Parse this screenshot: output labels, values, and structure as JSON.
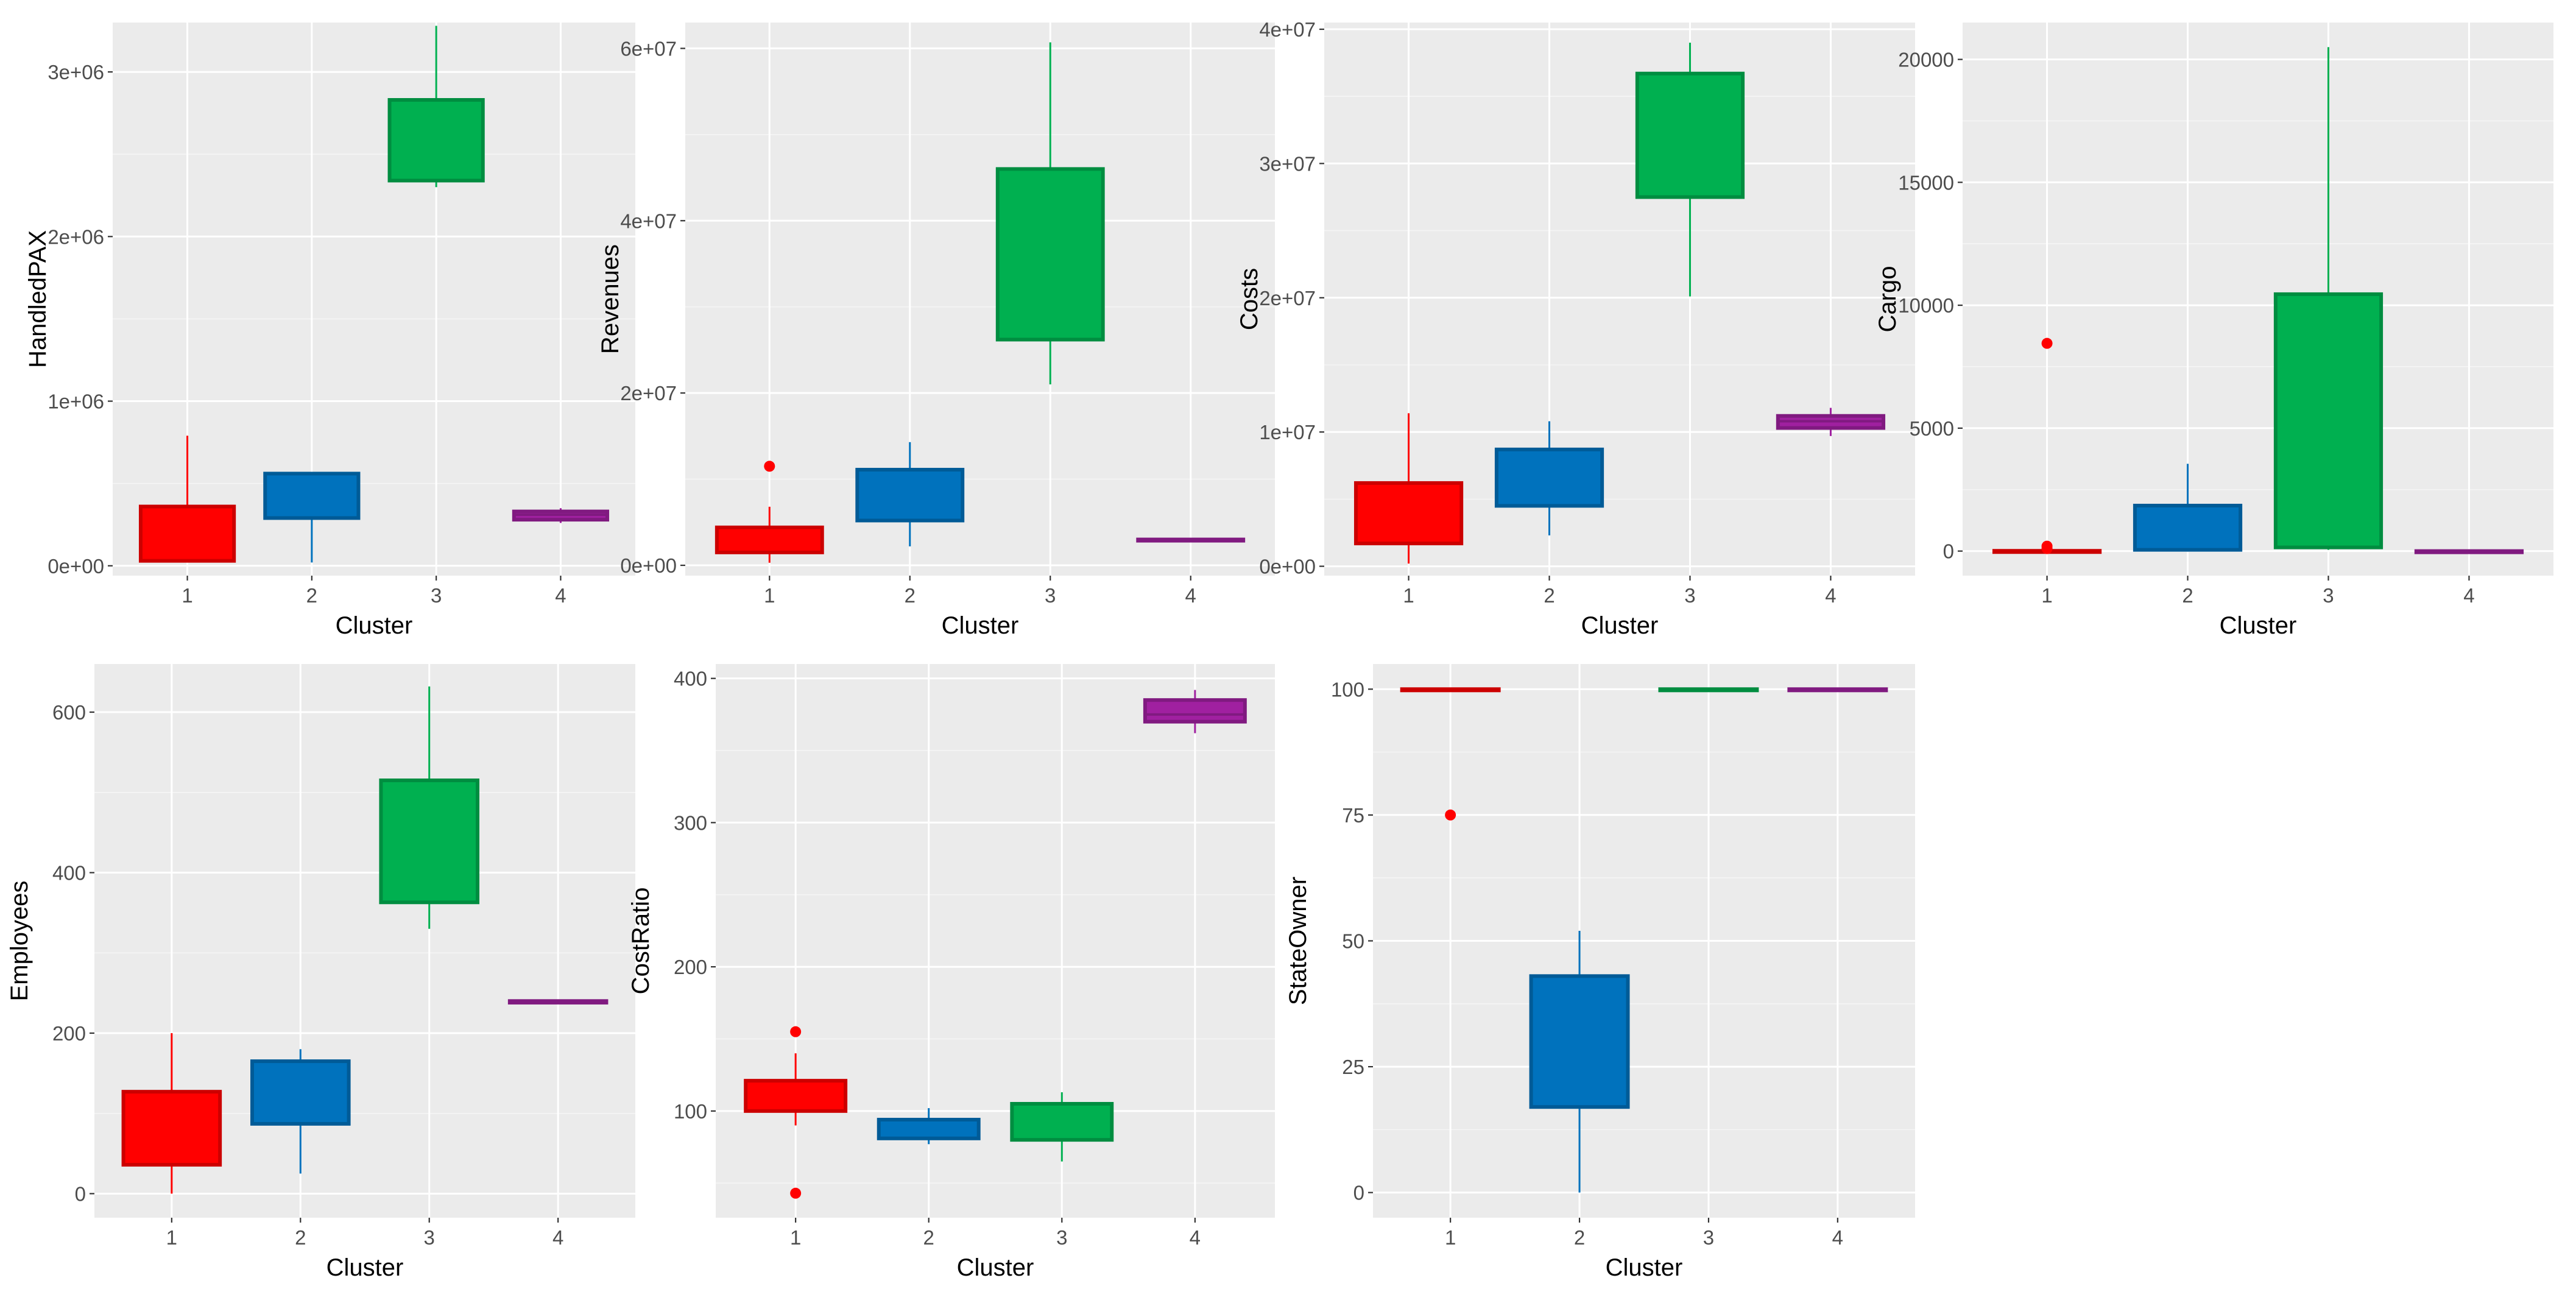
{
  "palette": {
    "1": "#ff0000",
    "2": "#0072bd",
    "3": "#00b050",
    "4": "#a020a0"
  },
  "chart_data": [
    {
      "type": "boxplot",
      "xlabel": "Cluster",
      "ylabel": "HandledPAX",
      "categories": [
        "1",
        "2",
        "3",
        "4"
      ],
      "ylim": [
        -60000,
        3300000
      ],
      "yticks": [
        0,
        1000000,
        2000000,
        3000000
      ],
      "ytick_labels": [
        "0e+00",
        "1e+06",
        "2e+06",
        "3e+06"
      ],
      "boxes": [
        {
          "cluster": "1",
          "min": 30000,
          "q1": 30000,
          "median": 30000,
          "q3": 360000,
          "max": 790000,
          "outliers": []
        },
        {
          "cluster": "2",
          "min": 20000,
          "q1": 290000,
          "median": 290000,
          "q3": 560000,
          "max": 560000,
          "outliers": []
        },
        {
          "cluster": "3",
          "min": 2300000,
          "q1": 2340000,
          "median": 2340000,
          "q3": 2830000,
          "max": 3280000,
          "outliers": []
        },
        {
          "cluster": "4",
          "min": 260000,
          "q1": 280000,
          "median": 310000,
          "q3": 330000,
          "max": 350000,
          "outliers": []
        }
      ]
    },
    {
      "type": "boxplot",
      "xlabel": "Cluster",
      "ylabel": "Revenues",
      "categories": [
        "1",
        "2",
        "3",
        "4"
      ],
      "ylim": [
        -1200000,
        63000000
      ],
      "yticks": [
        0,
        20000000,
        40000000,
        60000000
      ],
      "ytick_labels": [
        "0e+00",
        "2e+07",
        "4e+07",
        "6e+07"
      ],
      "boxes": [
        {
          "cluster": "1",
          "min": 300000,
          "q1": 1500000,
          "median": 1500000,
          "q3": 4400000,
          "max": 6800000,
          "outliers": [
            11500000
          ]
        },
        {
          "cluster": "2",
          "min": 2200000,
          "q1": 5200000,
          "median": 5200000,
          "q3": 11100000,
          "max": 14300000,
          "outliers": []
        },
        {
          "cluster": "3",
          "min": 21000000,
          "q1": 26200000,
          "median": 26200000,
          "q3": 46000000,
          "max": 60700000,
          "outliers": []
        },
        {
          "cluster": "4",
          "min": 2900000,
          "q1": 2900000,
          "median": 2900000,
          "q3": 3000000,
          "max": 3000000,
          "outliers": []
        }
      ]
    },
    {
      "type": "boxplot",
      "xlabel": "Cluster",
      "ylabel": "Costs",
      "categories": [
        "1",
        "2",
        "3",
        "4"
      ],
      "ylim": [
        -700000,
        40500000
      ],
      "yticks": [
        0,
        10000000,
        20000000,
        30000000,
        40000000
      ],
      "ytick_labels": [
        "0e+00",
        "1e+07",
        "2e+07",
        "3e+07",
        "4e+07"
      ],
      "boxes": [
        {
          "cluster": "1",
          "min": 200000,
          "q1": 1700000,
          "median": 1700000,
          "q3": 6200000,
          "max": 11400000,
          "outliers": []
        },
        {
          "cluster": "2",
          "min": 2300000,
          "q1": 4500000,
          "median": 4500000,
          "q3": 8700000,
          "max": 10800000,
          "outliers": []
        },
        {
          "cluster": "3",
          "min": 20100000,
          "q1": 27500000,
          "median": 27500000,
          "q3": 36700000,
          "max": 39000000,
          "outliers": []
        },
        {
          "cluster": "4",
          "min": 9700000,
          "q1": 10300000,
          "median": 10800000,
          "q3": 11200000,
          "max": 11800000,
          "outliers": []
        }
      ]
    },
    {
      "type": "boxplot",
      "xlabel": "Cluster",
      "ylabel": "Cargo",
      "categories": [
        "1",
        "2",
        "3",
        "4"
      ],
      "ylim": [
        -1000,
        21500
      ],
      "yticks": [
        0,
        5000,
        10000,
        15000,
        20000
      ],
      "ytick_labels": [
        "0",
        "5000",
        "10000",
        "15000",
        "20000"
      ],
      "boxes": [
        {
          "cluster": "1",
          "min": 0,
          "q1": 0,
          "median": 0,
          "q3": 10,
          "max": 20,
          "outliers": [
            8450,
            200,
            100
          ]
        },
        {
          "cluster": "2",
          "min": 0,
          "q1": 50,
          "median": 50,
          "q3": 1850,
          "max": 3550,
          "outliers": []
        },
        {
          "cluster": "3",
          "min": 50,
          "q1": 150,
          "median": 150,
          "q3": 10450,
          "max": 20500,
          "outliers": []
        },
        {
          "cluster": "4",
          "min": 0,
          "q1": 0,
          "median": 0,
          "q3": 0,
          "max": 0,
          "outliers": []
        }
      ]
    },
    {
      "type": "boxplot",
      "xlabel": "Cluster",
      "ylabel": "Employees",
      "categories": [
        "1",
        "2",
        "3",
        "4"
      ],
      "ylim": [
        -30,
        660
      ],
      "yticks": [
        0,
        200,
        400,
        600
      ],
      "ytick_labels": [
        "0",
        "200",
        "400",
        "600"
      ],
      "boxes": [
        {
          "cluster": "1",
          "min": 0,
          "q1": 36,
          "median": 36,
          "q3": 127,
          "max": 200,
          "outliers": []
        },
        {
          "cluster": "2",
          "min": 25,
          "q1": 87,
          "median": 87,
          "q3": 165,
          "max": 180,
          "outliers": []
        },
        {
          "cluster": "3",
          "min": 330,
          "q1": 363,
          "median": 363,
          "q3": 515,
          "max": 632,
          "outliers": []
        },
        {
          "cluster": "4",
          "min": 237,
          "q1": 238,
          "median": 239,
          "q3": 240,
          "max": 242,
          "outliers": []
        }
      ]
    },
    {
      "type": "boxplot",
      "xlabel": "Cluster",
      "ylabel": "CostRatio",
      "categories": [
        "1",
        "2",
        "3",
        "4"
      ],
      "ylim": [
        26,
        410
      ],
      "yticks": [
        100,
        200,
        300,
        400
      ],
      "ytick_labels": [
        "100",
        "200",
        "300",
        "400"
      ],
      "boxes": [
        {
          "cluster": "1",
          "min": 90,
          "q1": 100,
          "median": 100,
          "q3": 121,
          "max": 140,
          "outliers": [
            155,
            43
          ]
        },
        {
          "cluster": "2",
          "min": 77,
          "q1": 81,
          "median": 81,
          "q3": 94,
          "max": 102,
          "outliers": []
        },
        {
          "cluster": "3",
          "min": 65,
          "q1": 80,
          "median": 80,
          "q3": 105,
          "max": 113,
          "outliers": []
        },
        {
          "cluster": "4",
          "min": 362,
          "q1": 370,
          "median": 375,
          "q3": 385,
          "max": 392,
          "outliers": []
        }
      ]
    },
    {
      "type": "boxplot",
      "xlabel": "Cluster",
      "ylabel": "StateOwner",
      "categories": [
        "1",
        "2",
        "3",
        "4"
      ],
      "ylim": [
        -5,
        105
      ],
      "yticks": [
        0,
        25,
        50,
        75,
        100
      ],
      "ytick_labels": [
        "0",
        "25",
        "50",
        "75",
        "100"
      ],
      "boxes": [
        {
          "cluster": "1",
          "min": 100,
          "q1": 100,
          "median": 100,
          "q3": 100,
          "max": 100,
          "outliers": [
            75
          ]
        },
        {
          "cluster": "2",
          "min": 0,
          "q1": 17,
          "median": 17,
          "q3": 43,
          "max": 52,
          "outliers": []
        },
        {
          "cluster": "3",
          "min": 100,
          "q1": 100,
          "median": 100,
          "q3": 100,
          "max": 100,
          "outliers": []
        },
        {
          "cluster": "4",
          "min": 100,
          "q1": 100,
          "median": 100,
          "q3": 100,
          "max": 100,
          "outliers": []
        }
      ]
    }
  ]
}
